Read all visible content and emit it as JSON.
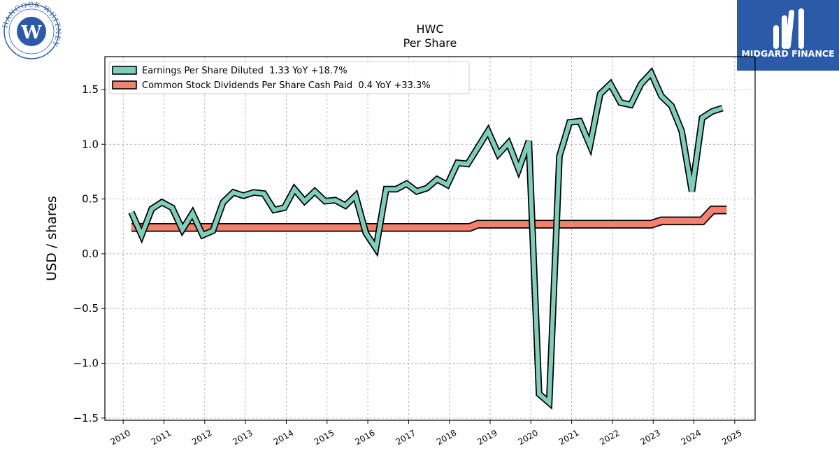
{
  "logos": {
    "left_seal_text": "HANCOCK WHITNEY",
    "left_seal_letter": "W",
    "right_brand": "MIDGARD FINANCE"
  },
  "colors": {
    "eps": "#7fcdbb",
    "dividends": "#f4806e",
    "outline": "#000000",
    "brand_bg": "#2b5aa8",
    "seal": "#2c5aa8"
  },
  "chart_data": {
    "type": "line",
    "title": "HWC",
    "subtitle": "Per  Share",
    "xlabel": "",
    "ylabel": "USD / shares",
    "xlim": [
      2009.55,
      2025.5
    ],
    "ylim": [
      -1.52,
      1.8
    ],
    "yticks": [
      -1.5,
      -1.0,
      -0.5,
      0.0,
      0.5,
      1.0,
      1.5
    ],
    "ytick_labels": [
      "−1.5",
      "−1.0",
      "−0.5",
      "0.0",
      "0.5",
      "1.0",
      "1.5"
    ],
    "xticks": [
      2010,
      2011,
      2012,
      2013,
      2014,
      2015,
      2016,
      2017,
      2018,
      2019,
      2020,
      2021,
      2022,
      2023,
      2024,
      2025
    ],
    "xtick_labels": [
      "2010",
      "2011",
      "2012",
      "2013",
      "2014",
      "2015",
      "2016",
      "2017",
      "2018",
      "2019",
      "2020",
      "2021",
      "2022",
      "2023",
      "2024",
      "2025"
    ],
    "grid": true,
    "legend_position": "top-left",
    "series": [
      {
        "name": "Earnings Per Share Diluted  1.33 YoY +18.7%",
        "color": "#7fcdbb",
        "x": [
          2010.2,
          2010.45,
          2010.7,
          2010.95,
          2011.2,
          2011.45,
          2011.7,
          2011.95,
          2012.2,
          2012.45,
          2012.7,
          2012.95,
          2013.2,
          2013.45,
          2013.7,
          2013.95,
          2014.2,
          2014.45,
          2014.7,
          2014.95,
          2015.2,
          2015.45,
          2015.7,
          2015.95,
          2016.2,
          2016.45,
          2016.7,
          2016.95,
          2017.2,
          2017.45,
          2017.7,
          2017.95,
          2018.2,
          2018.45,
          2018.7,
          2018.95,
          2019.2,
          2019.45,
          2019.7,
          2019.95,
          2020.2,
          2020.45,
          2020.7,
          2020.95,
          2021.2,
          2021.45,
          2021.7,
          2021.95,
          2022.2,
          2022.45,
          2022.7,
          2022.95,
          2023.2,
          2023.45,
          2023.7,
          2023.95,
          2024.2,
          2024.45,
          2024.7
        ],
        "values": [
          0.38,
          0.17,
          0.41,
          0.47,
          0.42,
          0.22,
          0.37,
          0.17,
          0.21,
          0.47,
          0.56,
          0.53,
          0.56,
          0.55,
          0.4,
          0.42,
          0.59,
          0.48,
          0.57,
          0.48,
          0.49,
          0.44,
          0.53,
          0.19,
          0.05,
          0.59,
          0.59,
          0.64,
          0.57,
          0.6,
          0.68,
          0.63,
          0.83,
          0.82,
          0.97,
          1.12,
          0.91,
          1.01,
          0.77,
          1.03,
          -1.28,
          -1.36,
          0.89,
          1.2,
          1.21,
          0.99,
          1.46,
          1.55,
          1.38,
          1.36,
          1.55,
          1.65,
          1.44,
          1.35,
          1.12,
          0.57,
          1.24,
          1.3,
          1.33
        ]
      },
      {
        "name": "Common Stock Dividends Per Share Cash Paid  0.4 YoY +33.3%",
        "color": "#f4806e",
        "x": [
          2010.2,
          2018.5,
          2018.7,
          2022.95,
          2023.2,
          2024.2,
          2024.45,
          2024.8
        ],
        "values": [
          0.24,
          0.24,
          0.27,
          0.27,
          0.3,
          0.3,
          0.4,
          0.4
        ]
      }
    ]
  }
}
